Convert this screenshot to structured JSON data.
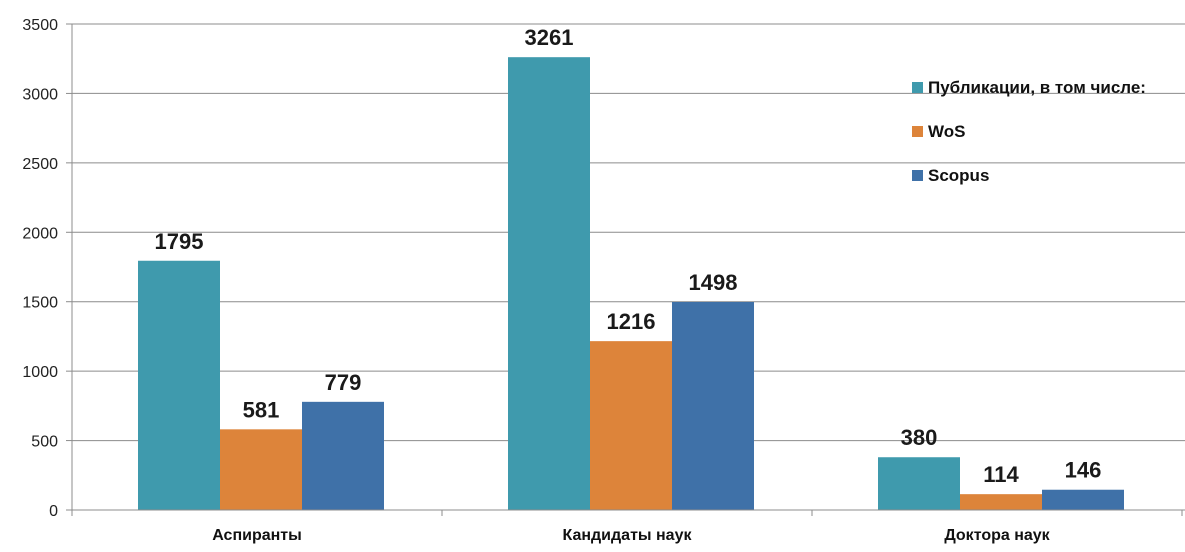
{
  "chart_data": {
    "type": "bar",
    "title": "",
    "xlabel": "",
    "ylabel": "",
    "categories": [
      "Аспиранты",
      "Кандидаты наук",
      "Доктора наук"
    ],
    "series": [
      {
        "name": "Публикации, в том числе:",
        "color": "#3f9aad",
        "values": [
          1795,
          3261,
          380
        ]
      },
      {
        "name": "WoS",
        "color": "#dd843a",
        "values": [
          581,
          1216,
          114
        ]
      },
      {
        "name": "Scopus",
        "color": "#3f71a8",
        "values": [
          779,
          1498,
          146
        ]
      }
    ],
    "ylim": [
      0,
      3500
    ],
    "yticks": [
      0,
      500,
      1000,
      1500,
      2000,
      2500,
      3000,
      3500
    ],
    "grid": true,
    "legend_position": "right"
  }
}
